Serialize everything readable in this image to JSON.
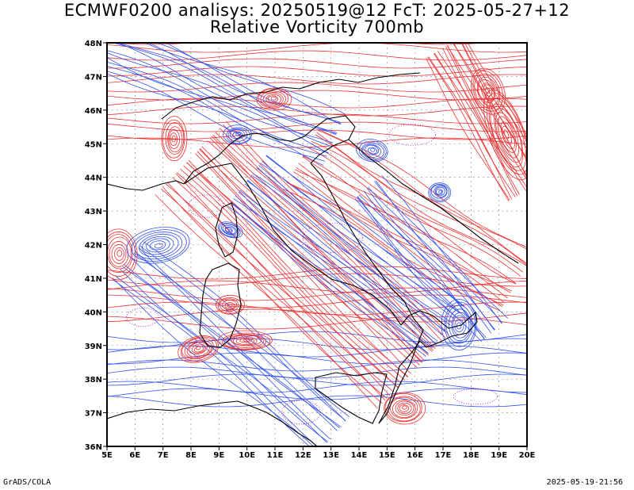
{
  "title_line1": "ECMWF0200 analisys: 20250519@12 FcT: 2025-05-27+12",
  "title_line2": "Relative Vorticity 700mb",
  "lat_labels": [
    "36N",
    "37N",
    "38N",
    "39N",
    "40N",
    "41N",
    "42N",
    "43N",
    "44N",
    "45N",
    "46N",
    "47N",
    "48N"
  ],
  "lon_labels": [
    "5E",
    "6E",
    "7E",
    "8E",
    "9E",
    "10E",
    "11E",
    "12E",
    "13E",
    "14E",
    "15E",
    "16E",
    "17E",
    "18E",
    "19E",
    "20E"
  ],
  "footer_left": "GrADS/COLA",
  "footer_right": "2025-05-19-21:56",
  "colors": {
    "positive_contour": "#ee3030",
    "negative_contour": "#3050ee",
    "zero_contour": "#b000b0",
    "coastline": "#000000",
    "grid": "#888888"
  },
  "map_extent": {
    "lon_min": 5,
    "lon_max": 20,
    "lat_min": 36,
    "lat_max": 48
  }
}
